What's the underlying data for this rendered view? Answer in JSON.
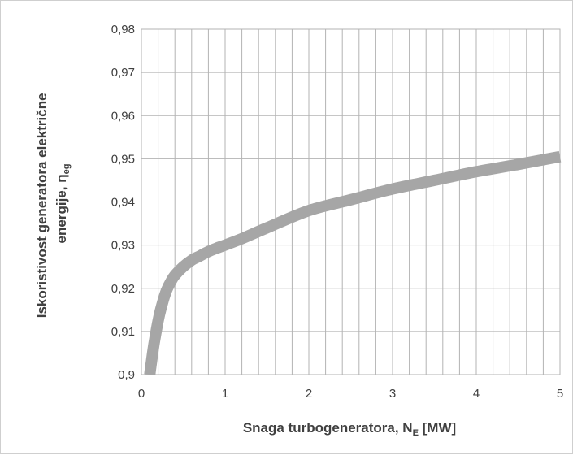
{
  "chart_data": {
    "type": "line",
    "title": "",
    "xlabel": {
      "prefix": "Snaga turbogeneratora, N",
      "subscript": "E",
      "suffix": " [MW]"
    },
    "ylabel": {
      "line1": "Iskoristivost generatora  električne",
      "line2_prefix": "energije, η",
      "line2_subscript": "eg"
    },
    "xlim": [
      0,
      5
    ],
    "ylim": [
      0.9,
      0.98
    ],
    "x_ticks": [
      "0",
      "1",
      "2",
      "3",
      "4",
      "5"
    ],
    "y_ticks": [
      "0,9",
      "0,91",
      "0,92",
      "0,93",
      "0,94",
      "0,95",
      "0,96",
      "0,97",
      "0,98"
    ],
    "grid": true,
    "minor_grid_x_step": 0.2,
    "minor_grid_y_step": 0.01,
    "line_color": "#a6a6a6",
    "grid_color": "#b3b3b3",
    "series": [
      {
        "name": "",
        "x": [
          0.1,
          0.12,
          0.15,
          0.2,
          0.25,
          0.3,
          0.35,
          0.4,
          0.5,
          0.6,
          0.7,
          0.8,
          0.9,
          1.0,
          1.2,
          1.5,
          2.0,
          2.5,
          3.0,
          3.5,
          4.0,
          4.5,
          5.0
        ],
        "y": [
          0.9,
          0.903,
          0.907,
          0.9125,
          0.9165,
          0.9195,
          0.9215,
          0.923,
          0.925,
          0.9265,
          0.9275,
          0.9285,
          0.9293,
          0.93,
          0.9315,
          0.934,
          0.938,
          0.9405,
          0.943,
          0.945,
          0.947,
          0.9487,
          0.9505
        ]
      }
    ]
  }
}
